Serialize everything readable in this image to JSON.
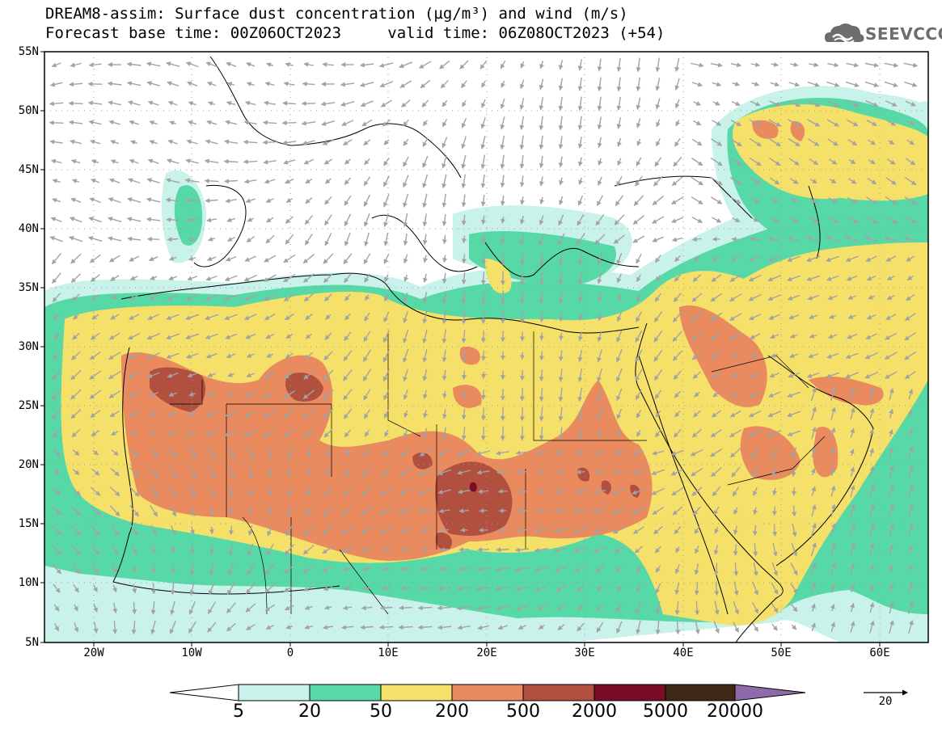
{
  "title_line1": "DREAM8-assim: Surface dust concentration (µg/m³) and wind (m/s)",
  "title_line2_left": "Forecast base time: 00Z06OCT2023",
  "title_line2_right": "valid time: 06Z08OCT2023 (+54)",
  "logo_text": "SEEVCCC",
  "lat_labels": [
    "55N",
    "50N",
    "45N",
    "40N",
    "35N",
    "30N",
    "25N",
    "20N",
    "15N",
    "10N",
    "5N"
  ],
  "lon_labels": [
    "20W",
    "10W",
    "0",
    "10E",
    "20E",
    "30E",
    "40E",
    "50E",
    "60E"
  ],
  "colorbar": {
    "labels": [
      "5",
      "20",
      "50",
      "200",
      "500",
      "2000",
      "5000",
      "20000"
    ],
    "colors": [
      "#c8f2ea",
      "#57d9a7",
      "#f5e06a",
      "#e98a5f",
      "#b1503f",
      "#7a0d25",
      "#3e2a17"
    ],
    "under_color": "#ffffff",
    "over_color": "#8d6aa8"
  },
  "wind_reference_value": "20",
  "colors": {
    "arrow": "#a3a3a3",
    "coast": "#000000",
    "grid": "#9a9a9a"
  }
}
